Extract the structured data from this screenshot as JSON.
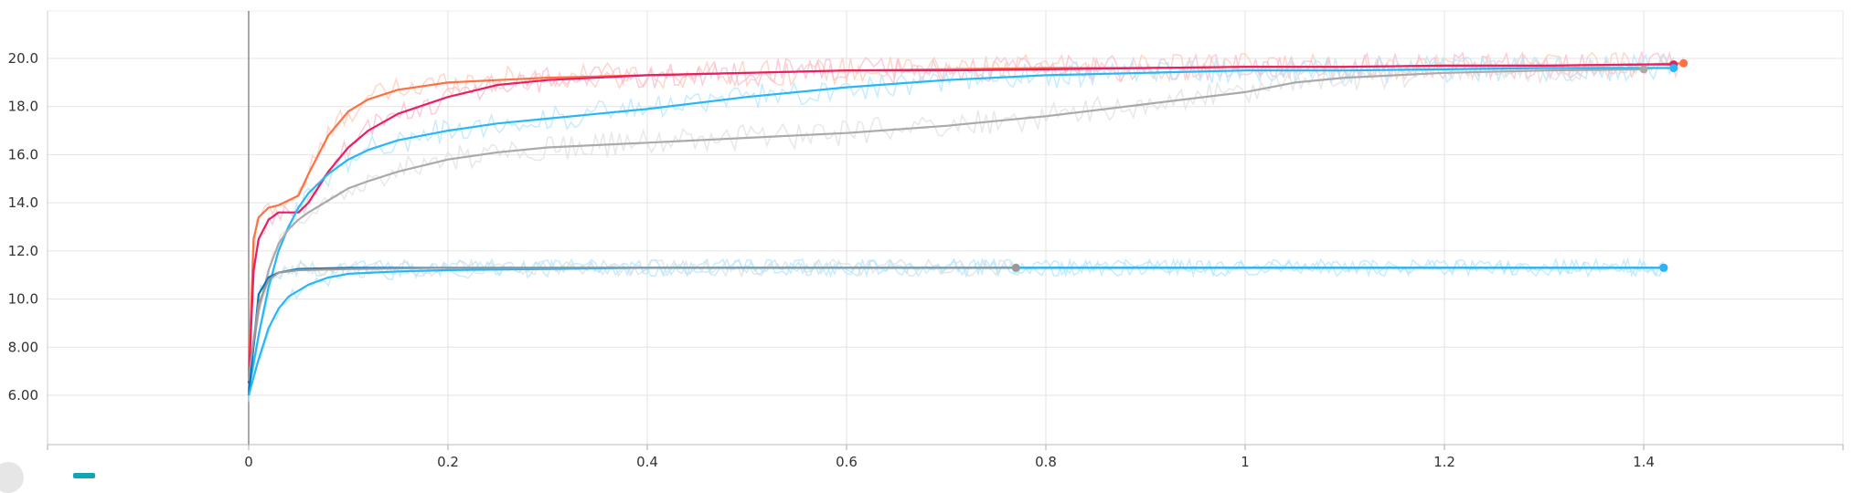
{
  "chart_data": {
    "type": "line",
    "title": "",
    "xlabel": "",
    "ylabel": "",
    "xlim": [
      -0.2,
      1.6
    ],
    "ylim": [
      4.6,
      21.8
    ],
    "grid": true,
    "x_ticks": [
      "0",
      "0.2",
      "0.4",
      "0.6",
      "0.8",
      "1",
      "1.2",
      "1.4"
    ],
    "y_ticks": [
      "6.00",
      "8.00",
      "10.0",
      "12.0",
      "14.0",
      "16.0",
      "18.0",
      "20.0"
    ],
    "series": [
      {
        "color": "#ff7043",
        "raw_color": "#ffc8b8",
        "x": [
          0.0,
          0.005,
          0.01,
          0.02,
          0.03,
          0.05,
          0.06,
          0.08,
          0.1,
          0.12,
          0.15,
          0.2,
          0.25,
          0.3,
          0.4,
          0.5,
          0.6,
          0.7,
          0.8,
          0.9,
          1.0,
          1.1,
          1.2,
          1.3,
          1.4,
          1.44
        ],
        "values": [
          6.8,
          12.5,
          13.4,
          13.8,
          13.9,
          14.3,
          15.2,
          16.8,
          17.8,
          18.3,
          18.7,
          19.0,
          19.1,
          19.2,
          19.3,
          19.4,
          19.5,
          19.55,
          19.6,
          19.6,
          19.65,
          19.65,
          19.7,
          19.7,
          19.75,
          19.8
        ]
      },
      {
        "color": "#e91e63",
        "raw_color": "#f8bbd0",
        "x": [
          0.0,
          0.005,
          0.01,
          0.02,
          0.03,
          0.05,
          0.06,
          0.08,
          0.1,
          0.12,
          0.15,
          0.2,
          0.25,
          0.3,
          0.4,
          0.5,
          0.6,
          0.7,
          0.8,
          0.9,
          1.0,
          1.1,
          1.2,
          1.3,
          1.4,
          1.43
        ],
        "values": [
          6.5,
          11.2,
          12.5,
          13.3,
          13.6,
          13.6,
          14.0,
          15.3,
          16.3,
          17.0,
          17.7,
          18.4,
          18.9,
          19.1,
          19.3,
          19.4,
          19.5,
          19.5,
          19.55,
          19.6,
          19.65,
          19.65,
          19.7,
          19.7,
          19.75,
          19.75
        ]
      },
      {
        "color": "#29b6f6",
        "raw_color": "#b3e5fc",
        "x": [
          0.0,
          0.01,
          0.02,
          0.03,
          0.04,
          0.05,
          0.06,
          0.08,
          0.1,
          0.12,
          0.15,
          0.2,
          0.25,
          0.3,
          0.4,
          0.5,
          0.6,
          0.7,
          0.8,
          0.9,
          1.0,
          1.1,
          1.2,
          1.3,
          1.4,
          1.43
        ],
        "values": [
          6.2,
          8.5,
          10.5,
          12.0,
          13.0,
          13.8,
          14.4,
          15.2,
          15.8,
          16.2,
          16.6,
          17.0,
          17.3,
          17.5,
          17.9,
          18.4,
          18.8,
          19.1,
          19.3,
          19.4,
          19.5,
          19.5,
          19.55,
          19.6,
          19.6,
          19.6
        ]
      },
      {
        "color": "#aaaaaa",
        "raw_color": "#e0e0e0",
        "x": [
          0.0,
          0.01,
          0.02,
          0.03,
          0.04,
          0.05,
          0.06,
          0.08,
          0.1,
          0.12,
          0.15,
          0.2,
          0.25,
          0.3,
          0.4,
          0.5,
          0.6,
          0.7,
          0.8,
          0.9,
          1.0,
          1.05,
          1.1,
          1.2,
          1.3,
          1.4
        ],
        "values": [
          6.6,
          9.5,
          11.2,
          12.3,
          12.9,
          13.3,
          13.6,
          14.1,
          14.6,
          14.9,
          15.3,
          15.8,
          16.1,
          16.3,
          16.5,
          16.7,
          16.9,
          17.2,
          17.6,
          18.1,
          18.6,
          19.0,
          19.2,
          19.4,
          19.5,
          19.55
        ]
      },
      {
        "color": "#0277bd",
        "raw_color": "#b3e5fc",
        "x": [
          0.0,
          0.01,
          0.02,
          0.03,
          0.05,
          0.1,
          0.2,
          0.3,
          0.4,
          0.5,
          0.6,
          0.7,
          0.8,
          0.9,
          1.0,
          1.1,
          1.2,
          1.3,
          1.42
        ],
        "values": [
          6.0,
          10.2,
          10.9,
          11.1,
          11.25,
          11.3,
          11.3,
          11.3,
          11.3,
          11.3,
          11.3,
          11.3,
          11.3,
          11.3,
          11.3,
          11.3,
          11.3,
          11.3,
          11.3
        ]
      },
      {
        "color": "#29b6f6",
        "raw_color": "#b3e5fc",
        "x": [
          0.0,
          0.01,
          0.02,
          0.03,
          0.04,
          0.06,
          0.08,
          0.1,
          0.15,
          0.2,
          0.3,
          0.4,
          0.5,
          0.6,
          0.7,
          0.8,
          0.9,
          1.0,
          1.1,
          1.2,
          1.3,
          1.42
        ],
        "values": [
          6.0,
          7.5,
          8.8,
          9.6,
          10.1,
          10.6,
          10.9,
          11.05,
          11.15,
          11.2,
          11.25,
          11.3,
          11.3,
          11.3,
          11.3,
          11.3,
          11.3,
          11.3,
          11.3,
          11.3,
          11.3,
          11.3
        ]
      },
      {
        "color": "#999999",
        "raw_color": "#dddddd",
        "x": [
          0.0,
          0.01,
          0.02,
          0.03,
          0.05,
          0.1,
          0.2,
          0.3,
          0.4,
          0.5,
          0.6,
          0.7,
          0.77
        ],
        "values": [
          6.8,
          9.8,
          10.8,
          11.1,
          11.2,
          11.25,
          11.3,
          11.3,
          11.3,
          11.3,
          11.3,
          11.3,
          11.3
        ]
      }
    ]
  }
}
